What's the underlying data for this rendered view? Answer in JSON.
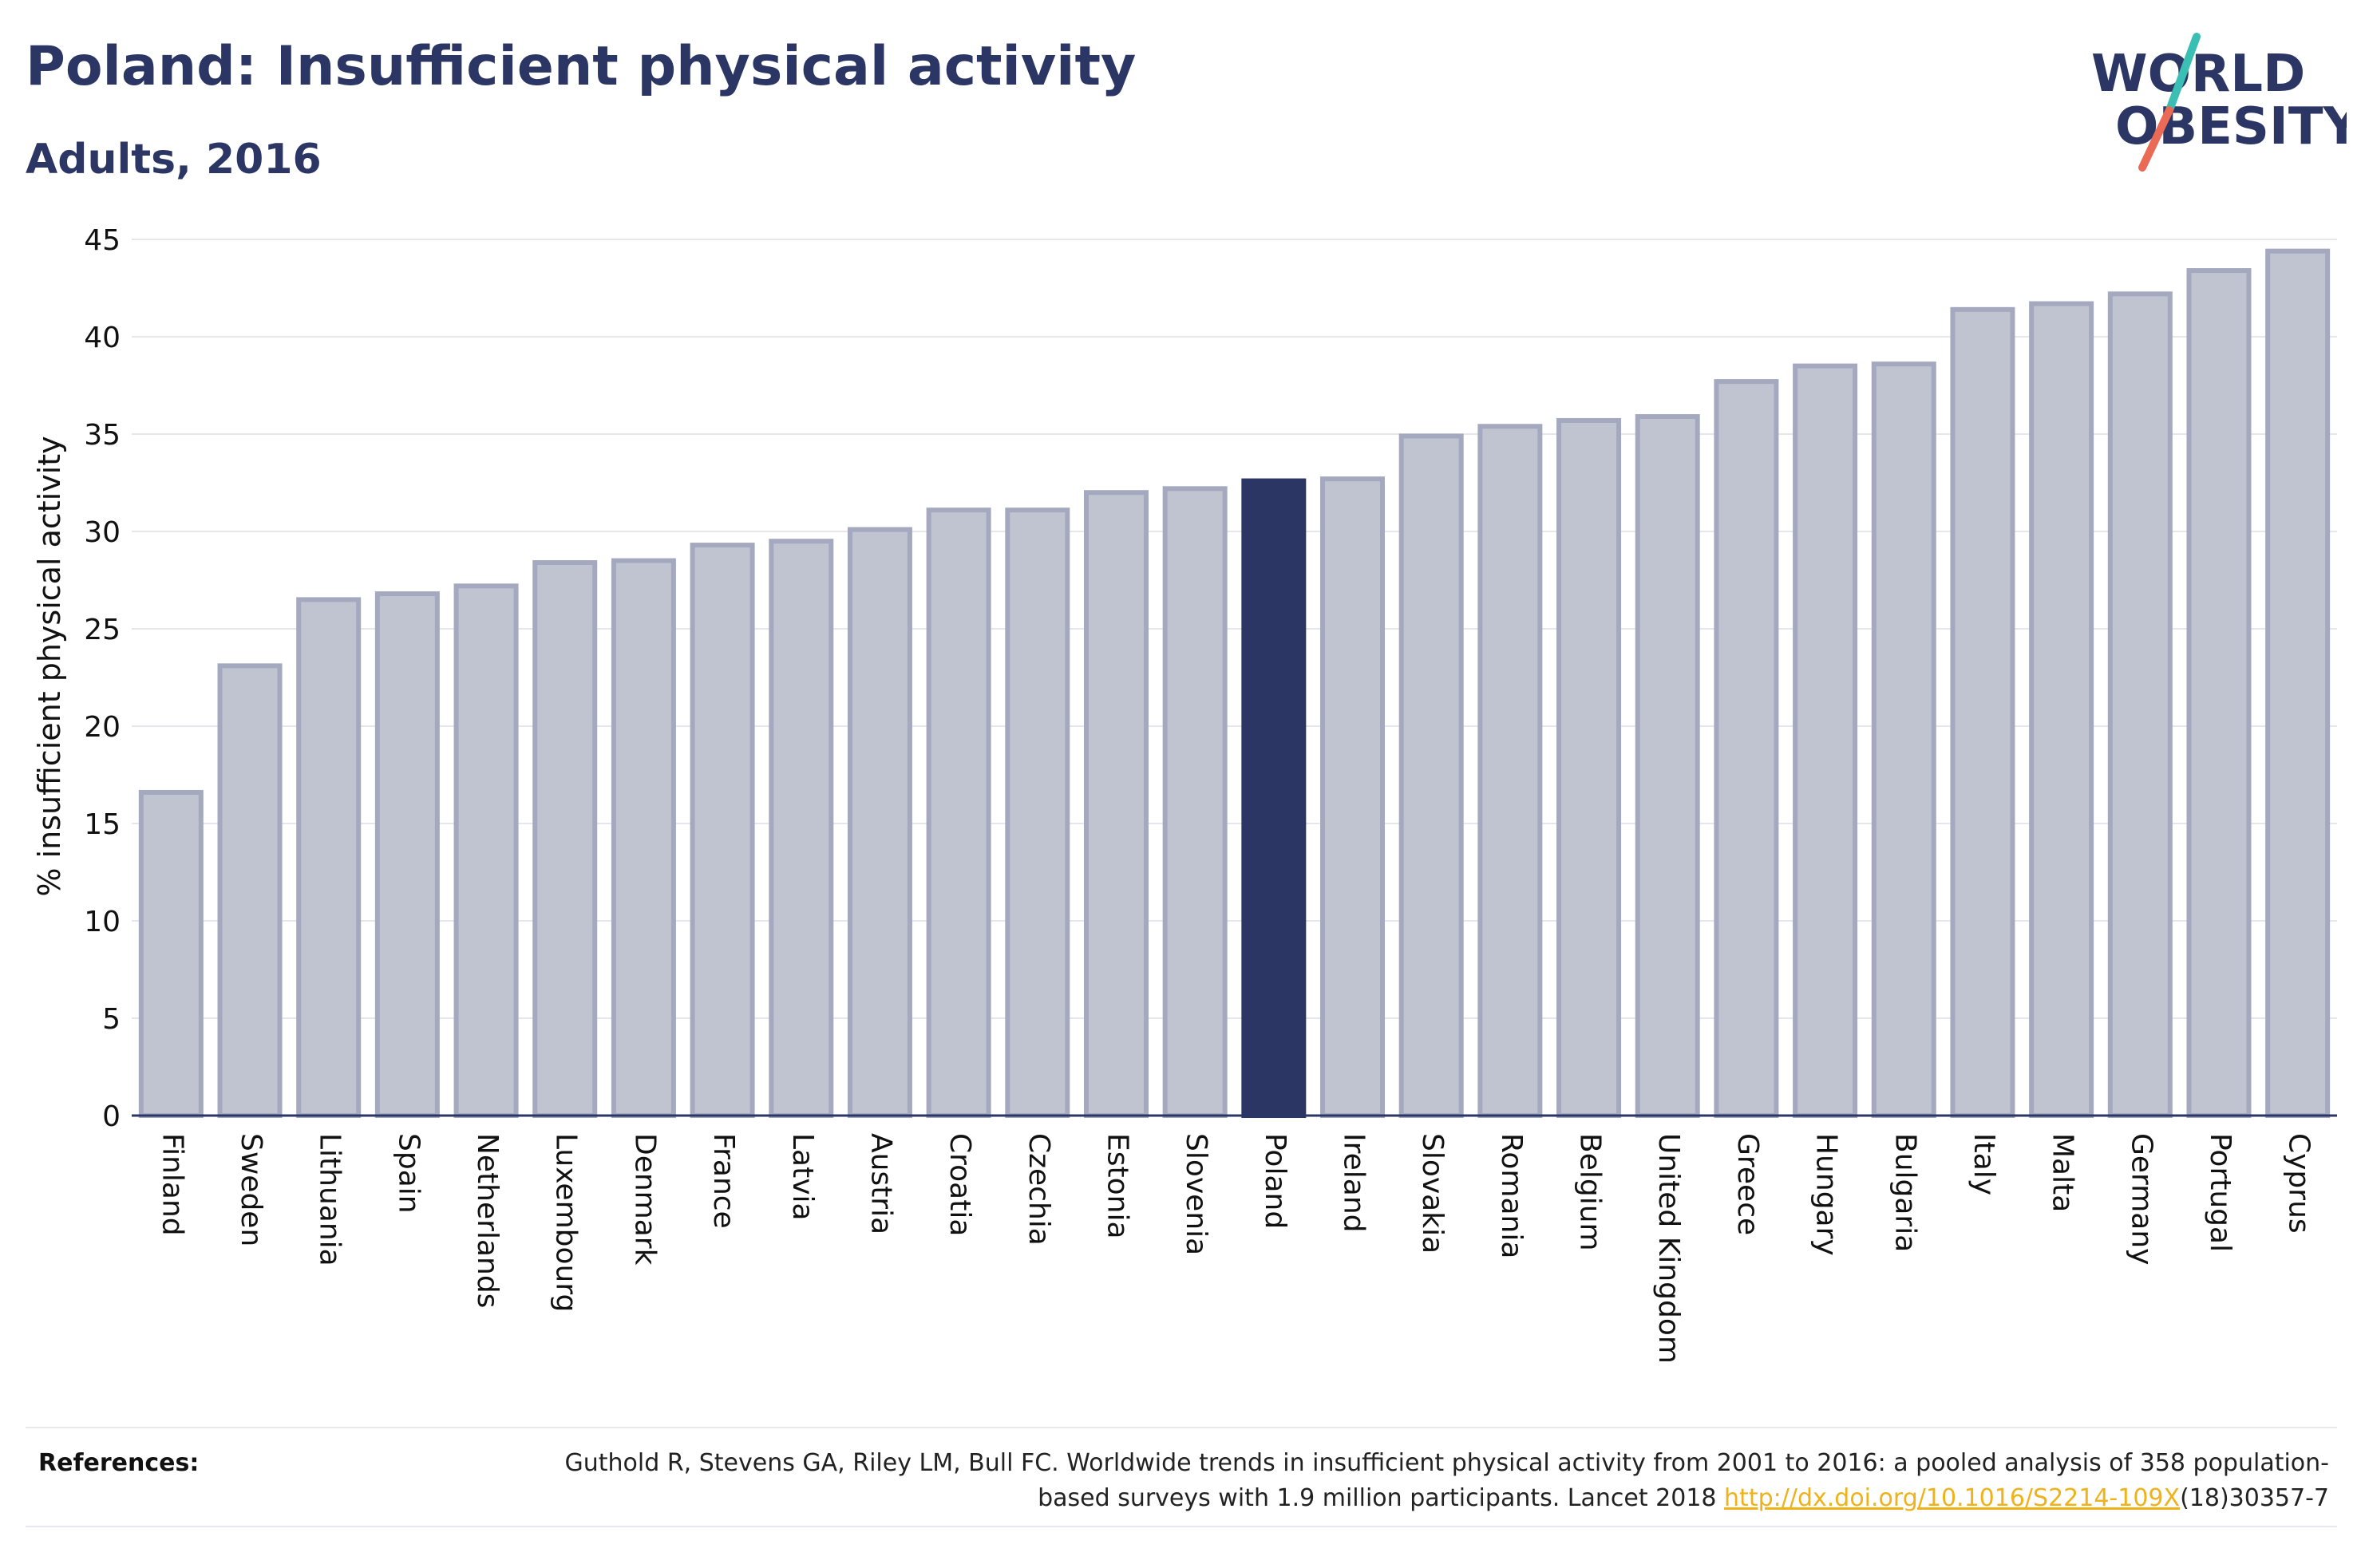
{
  "header": {
    "title": "Poland: Insufficient physical activity",
    "subtitle": "Adults, 2016"
  },
  "logo": {
    "line1": "WORLD",
    "line2": "OBESITY",
    "accent_teal": "#3bbfb5",
    "accent_coral": "#ea6a55",
    "text_color": "#2b3664"
  },
  "chart_data": {
    "type": "bar",
    "ylabel": "% insufficient physical activity",
    "ylim": [
      0,
      45
    ],
    "yticks": [
      0,
      5,
      10,
      15,
      20,
      25,
      30,
      35,
      40,
      45
    ],
    "grid": true,
    "highlight": "Poland",
    "highlight_color": "#2b3664",
    "bar_color": "#c0c3d0",
    "bar_edge_color": "#a4a9bf",
    "categories": [
      "Finland",
      "Sweden",
      "Lithuania",
      "Spain",
      "Netherlands",
      "Luxembourg",
      "Denmark",
      "France",
      "Latvia",
      "Austria",
      "Croatia",
      "Czechia",
      "Estonia",
      "Slovenia",
      "Poland",
      "Ireland",
      "Slovakia",
      "Romania",
      "Belgium",
      "United Kingdom",
      "Greece",
      "Hungary",
      "Bulgaria",
      "Italy",
      "Malta",
      "Germany",
      "Portugal",
      "Cyprus"
    ],
    "values": [
      16.6,
      23.1,
      26.5,
      26.8,
      27.2,
      28.4,
      28.5,
      29.3,
      29.5,
      30.1,
      31.1,
      31.1,
      32.0,
      32.2,
      32.6,
      32.7,
      34.9,
      35.4,
      35.7,
      35.9,
      37.7,
      38.5,
      38.6,
      41.4,
      41.7,
      42.2,
      43.4,
      44.4
    ]
  },
  "references": {
    "label": "References:",
    "text_before": "Guthold R, Stevens GA, Riley LM, Bull FC. Worldwide trends in insufficient physical activity from 2001 to 2016: a pooled analysis of 358 population-based surveys with 1.9 million participants. Lancet 2018 ",
    "link": "http://dx.doi.org/10.1016/S2214-109X",
    "text_after": "(18)30357-7"
  }
}
